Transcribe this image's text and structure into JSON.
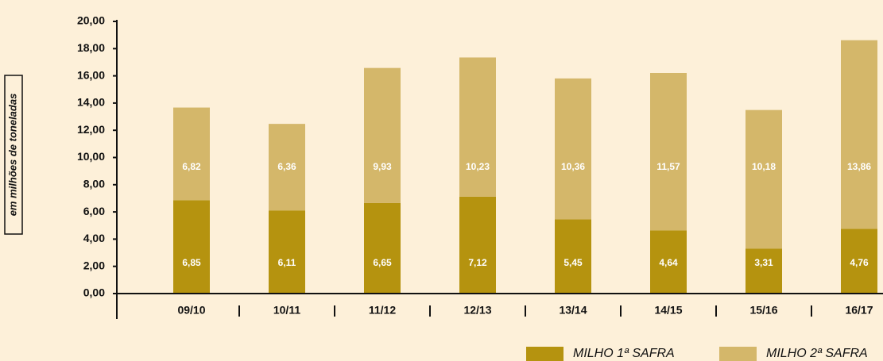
{
  "chart_data": {
    "type": "stacked-bar",
    "ylabel": "em milhões de toneladas",
    "categories": [
      "09/10",
      "10/11",
      "11/12",
      "12/13",
      "13/14",
      "14/15",
      "15/16",
      "16/17"
    ],
    "series": [
      {
        "name": "MILHO 1ª SAFRA",
        "color": "#b5930f",
        "values": [
          6.85,
          6.11,
          6.65,
          7.12,
          5.45,
          4.64,
          3.31,
          4.76
        ],
        "value_labels": [
          "6,85",
          "6,11",
          "6,65",
          "7,12",
          "5,45",
          "4,64",
          "3,31",
          "4,76"
        ]
      },
      {
        "name": "MILHO 2ª SAFRA",
        "color": "#d4b76a",
        "values": [
          6.82,
          6.36,
          9.93,
          10.23,
          10.36,
          11.57,
          10.18,
          13.86
        ],
        "value_labels": [
          "6,82",
          "6,36",
          "9,93",
          "10,23",
          "10,36",
          "11,57",
          "10,18",
          "13,86"
        ]
      }
    ],
    "ylim": [
      0,
      20
    ],
    "yticks": [
      {
        "value": 0,
        "label": "0,00"
      },
      {
        "value": 2,
        "label": "2,00"
      },
      {
        "value": 4,
        "label": "4,00"
      },
      {
        "value": 6,
        "label": "6,00"
      },
      {
        "value": 8,
        "label": "8,00"
      },
      {
        "value": 10,
        "label": "10,00"
      },
      {
        "value": 12,
        "label": "12,00"
      },
      {
        "value": 14,
        "label": "14,00"
      },
      {
        "value": 16,
        "label": "16,00"
      },
      {
        "value": 18,
        "label": "18,00"
      },
      {
        "value": 20,
        "label": "20,00"
      }
    ],
    "legend": "bottom-right"
  }
}
